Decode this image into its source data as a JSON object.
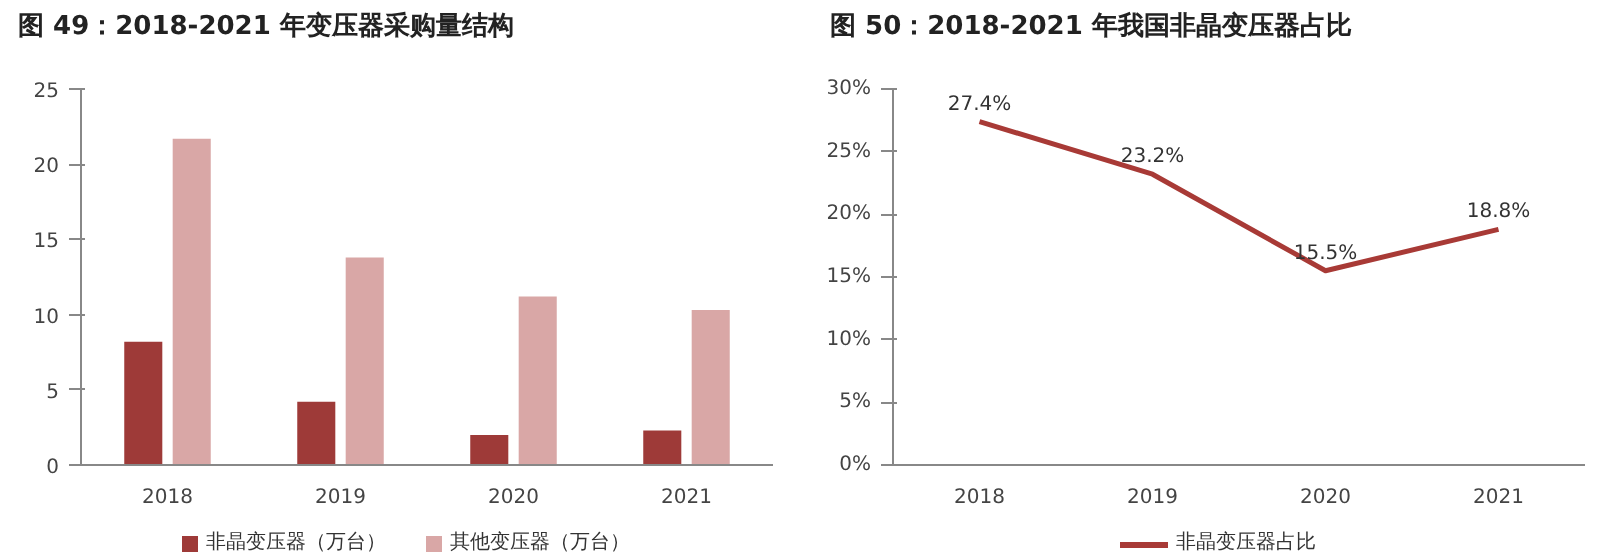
{
  "chart_data": [
    {
      "type": "bar",
      "title": "图 49：2018-2021 年变压器采购量结构",
      "categories": [
        "2018",
        "2019",
        "2020",
        "2021"
      ],
      "series": [
        {
          "name": "非晶变压器（万台）",
          "color": "#9e3a38",
          "values": [
            8.2,
            4.2,
            2.0,
            2.3
          ]
        },
        {
          "name": "其他变压器（万台）",
          "color": "#d9a7a6",
          "values": [
            21.7,
            13.8,
            11.2,
            10.3
          ]
        }
      ],
      "ylim": [
        0,
        25
      ],
      "yticks": [
        0,
        5,
        10,
        15,
        20,
        25
      ],
      "grid": false,
      "legend": "bottom"
    },
    {
      "type": "line",
      "title": "图 50：2018-2021 年我国非晶变压器占比",
      "categories": [
        "2018",
        "2019",
        "2020",
        "2021"
      ],
      "series": [
        {
          "name": "非晶变压器占比",
          "color": "#a83a36",
          "values": [
            27.4,
            23.2,
            15.5,
            18.8
          ],
          "value_labels": [
            "27.4%",
            "23.2%",
            "15.5%",
            "18.8%"
          ]
        }
      ],
      "ylim": [
        0,
        30
      ],
      "yticks": [
        {
          "value": 0,
          "label": "0%"
        },
        {
          "value": 5,
          "label": "5%"
        },
        {
          "value": 10,
          "label": "10%"
        },
        {
          "value": 15,
          "label": "15%"
        },
        {
          "value": 20,
          "label": "20%"
        },
        {
          "value": 25,
          "label": "25%"
        },
        {
          "value": 30,
          "label": "30%"
        }
      ],
      "grid": false,
      "legend": "bottom",
      "marker": "none",
      "line_style": "solid"
    }
  ]
}
